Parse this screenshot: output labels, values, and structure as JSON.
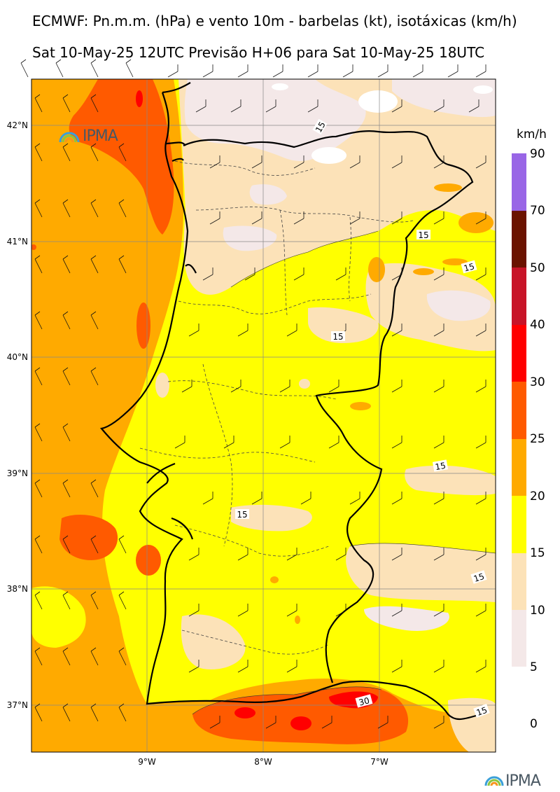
{
  "title_line1": "ECMWF: Pn.m.m. (hPa) e vento 10m - barbelas (kt), isotáxicas (km/h)",
  "title_line2": "Sat 10-May-25 12UTC Previsão H+06 para Sat 10-May-25 18UTC",
  "logo_text": "IPMA",
  "axes": {
    "lat_labels": [
      "42°N",
      "41°N",
      "40°N",
      "39°N",
      "38°N",
      "37°N"
    ],
    "lon_labels": [
      "9°W",
      "8°W",
      "7°W"
    ]
  },
  "contour_labels": [
    "15",
    "15",
    "15",
    "15",
    "15",
    "15",
    "15",
    "15",
    "30"
  ],
  "colorbar": {
    "unit": "km/h",
    "labels": [
      "90",
      "70",
      "50",
      "40",
      "30",
      "25",
      "20",
      "15",
      "10",
      "5",
      "0"
    ],
    "colors": [
      "#9966e6",
      "#6b1300",
      "#c81428",
      "#ff0000",
      "#ff5a00",
      "#ffaa00",
      "#ffff00",
      "#fce2b8",
      "#f4e8e8"
    ]
  }
}
